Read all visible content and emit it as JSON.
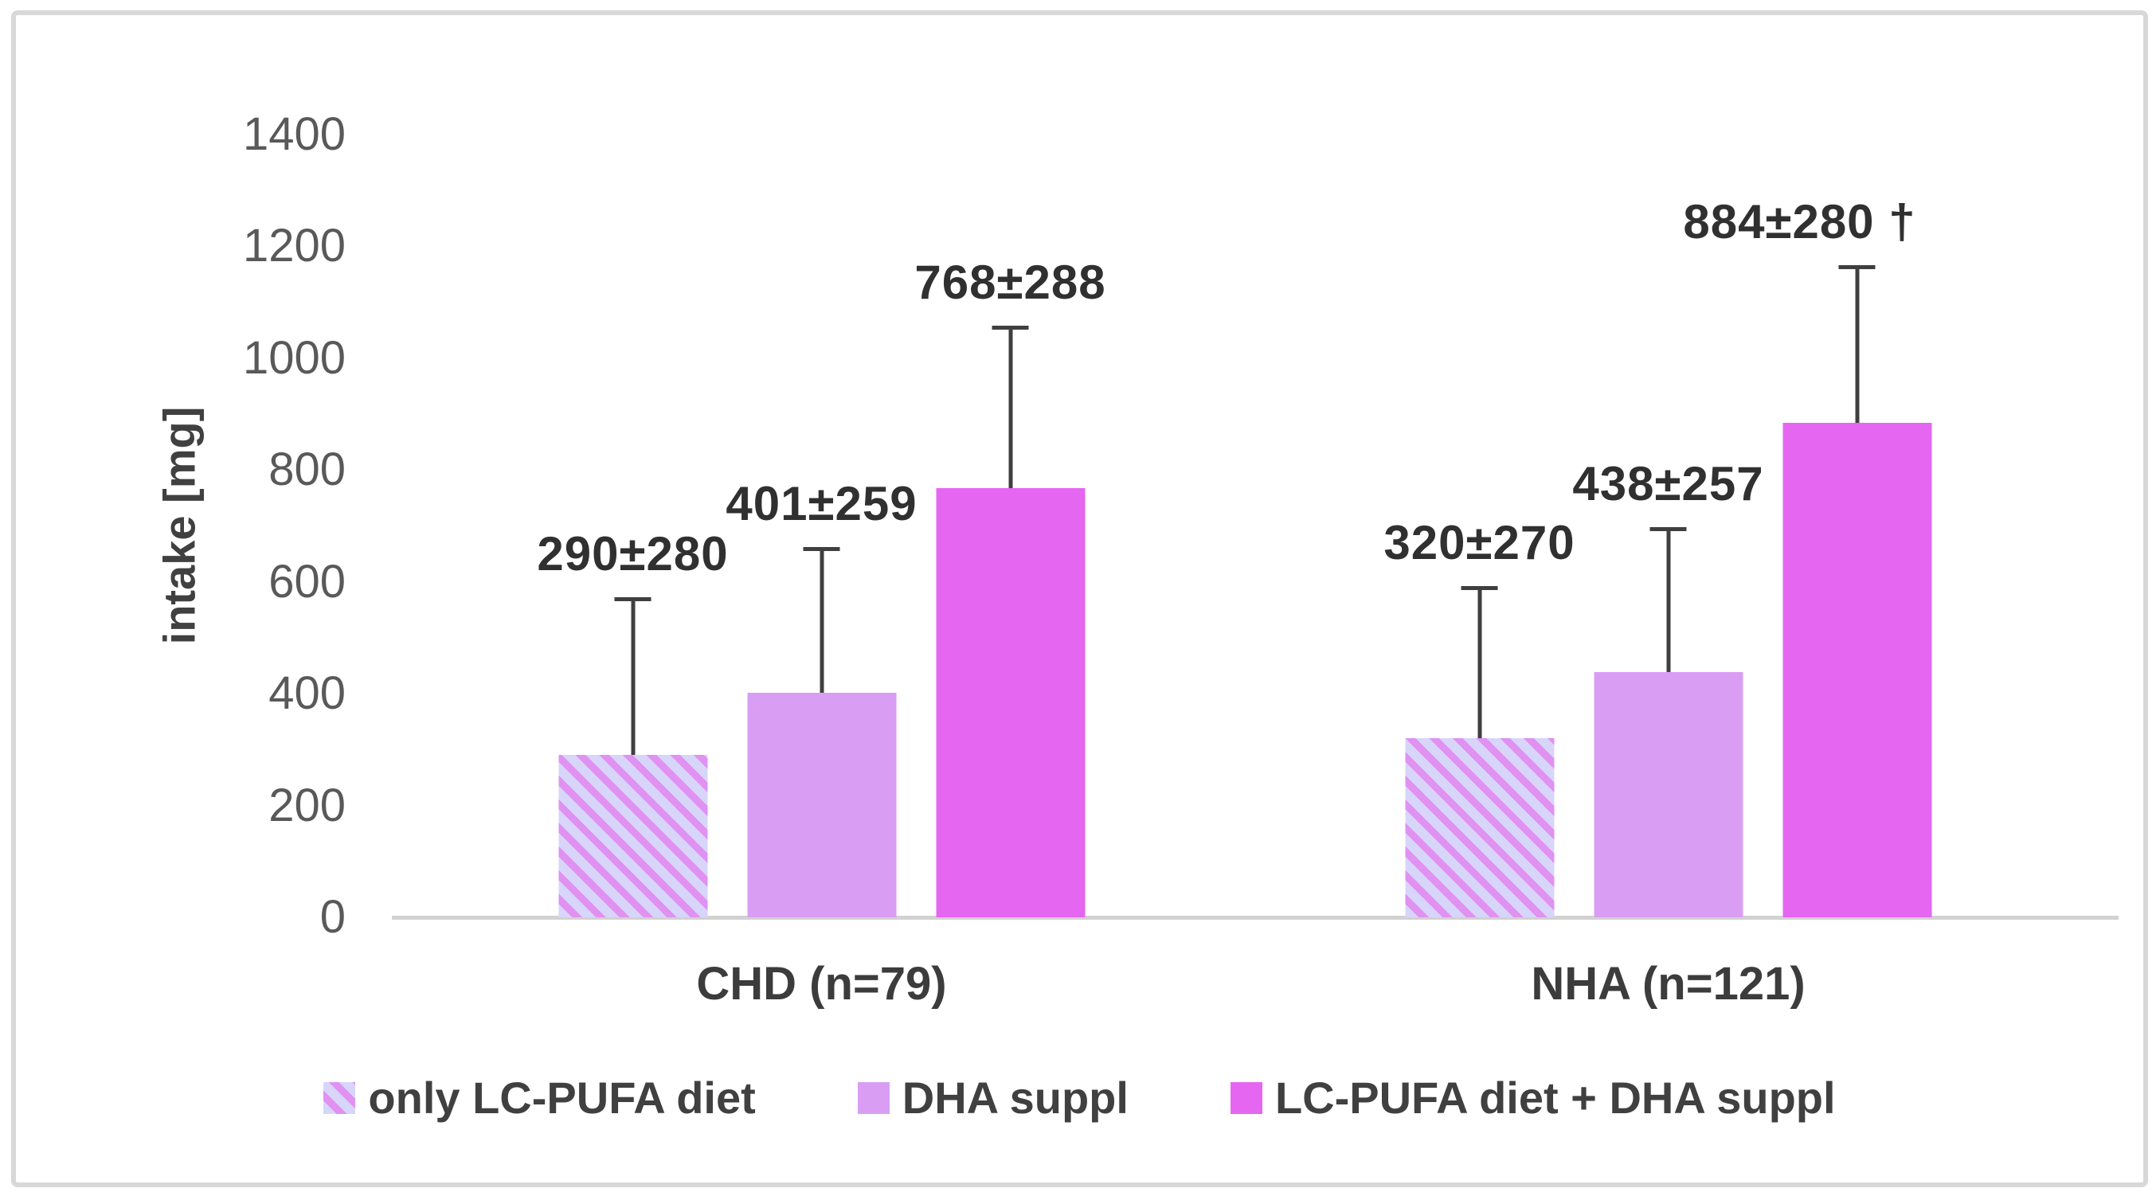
{
  "colors": {
    "background": "#ffffff",
    "frame_border": "#d8d8d8",
    "magenta": "#e567f1",
    "lilac": "#d99ef4",
    "stripe_bg": "#d8d5fa",
    "stripe_fg": "#e091f1",
    "error_bar": "#3f3f3f",
    "axis_line": "#d3d1d1",
    "tick_text": "#595959",
    "data_label_text": "#303030",
    "x_label_text": "#3c3c3c",
    "legend_text": "#404040",
    "axis_title_text": "#404040"
  },
  "chart_data": {
    "type": "bar",
    "title": "",
    "xlabel": "",
    "ylabel": "intake [mg]",
    "ylim": [
      0,
      1400
    ],
    "yticks": [
      0,
      200,
      400,
      600,
      800,
      1000,
      1200,
      1400
    ],
    "grid": false,
    "legend_position": "bottom",
    "error_bars": "plus-direction, standard deviation",
    "categories": [
      "CHD (n=79)",
      "NHA (n=121)"
    ],
    "series": [
      {
        "name": "only LC-PUFA diet",
        "fill": "striped",
        "values": [
          290,
          320
        ],
        "sd": [
          280,
          270
        ],
        "data_labels": [
          "290±280",
          "320±270"
        ]
      },
      {
        "name": "DHA suppl",
        "fill": "lilac",
        "values": [
          401,
          438
        ],
        "sd": [
          259,
          257
        ],
        "data_labels": [
          "401±259",
          "438±257"
        ]
      },
      {
        "name": "LC-PUFA diet + DHA suppl",
        "fill": "magenta",
        "values": [
          768,
          884
        ],
        "sd": [
          288,
          280
        ],
        "data_labels": [
          "768±288",
          "884±280 †"
        ]
      }
    ]
  }
}
